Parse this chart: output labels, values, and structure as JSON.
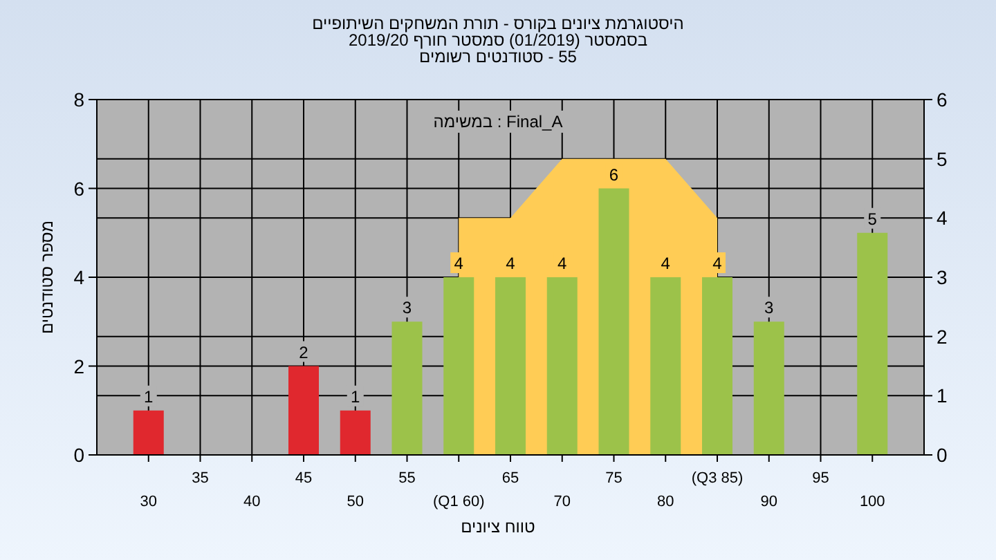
{
  "chart_data": {
    "type": "bar",
    "title": "היסטוגרמת ציונים בקורס - תורת המשחקים השיתופיים",
    "subtitle": "בסמסטר (01/2019) סמסטר חורף 2019/20\n55 - סטודנטים רשומים",
    "xlabel": "טווח ציונים",
    "ylabel": "מספר סטודנטים",
    "annotations": [
      "במשימה : Final_A"
    ],
    "categories": [
      "30",
      "35",
      "40",
      "45",
      "50",
      "55",
      "(Q1 60)",
      "65",
      "70",
      "75",
      "80",
      "(Q3 85)",
      "90",
      "95",
      "100"
    ],
    "series": [
      {
        "type": "area",
        "axis": "y2",
        "color": "#ffcc55",
        "values": [
          null,
          null,
          null,
          null,
          null,
          null,
          4,
          4,
          5,
          5,
          5,
          4,
          null,
          null,
          null
        ]
      },
      {
        "colors": [
          "#e0282e",
          "#e0282e",
          "#e0282e",
          "#e0282e",
          "#e0282e",
          "#9cc24a",
          "#9cc24a",
          "#9cc24a",
          "#9cc24a",
          "#9cc24a",
          "#9cc24a",
          "#9cc24a",
          "#9cc24a",
          "#9cc24a",
          "#9cc24a"
        ],
        "values": [
          1,
          0,
          0,
          2,
          1,
          3,
          4,
          4,
          4,
          6,
          4,
          4,
          3,
          0,
          5
        ],
        "value_labels": [
          "1",
          null,
          null,
          "2",
          "1",
          "3",
          "4",
          "4",
          "4",
          "6",
          "4",
          "4",
          "3",
          null,
          "5"
        ]
      }
    ],
    "ylim": [
      0,
      8
    ],
    "yticks": [
      0,
      2,
      4,
      6,
      8
    ],
    "y2lim": [
      0,
      6
    ],
    "y2ticks": [
      0,
      1,
      2,
      3,
      4,
      5,
      6
    ],
    "grid": true
  }
}
